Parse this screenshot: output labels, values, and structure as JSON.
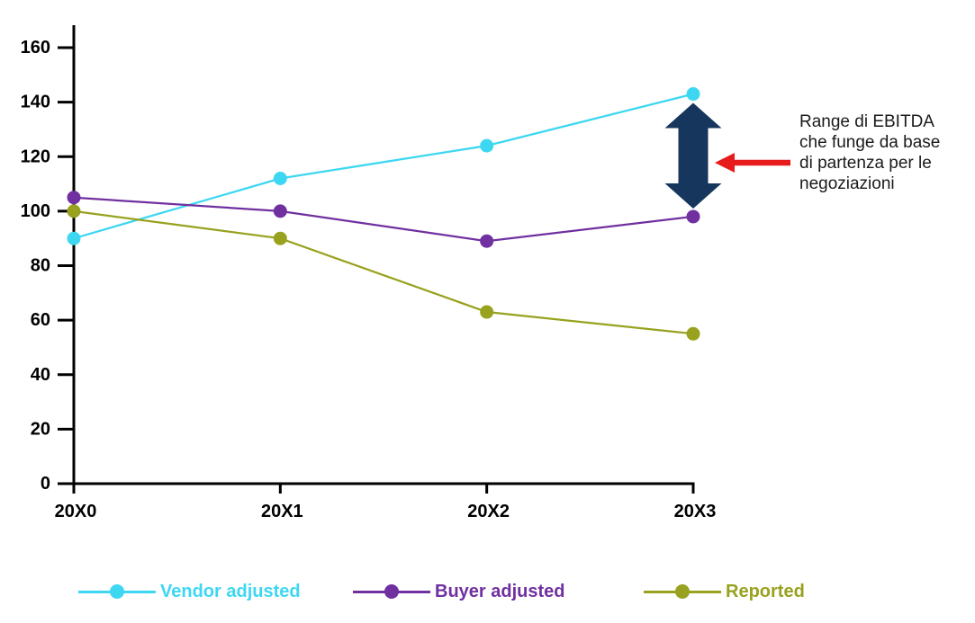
{
  "chart_data": {
    "type": "line",
    "categories": [
      "20X0",
      "20X1",
      "20X2",
      "20X3"
    ],
    "series": [
      {
        "name": "Vendor adjusted",
        "color": "#3DD7F2",
        "values": [
          90,
          112,
          124,
          143
        ]
      },
      {
        "name": "Buyer adjusted",
        "color": "#7030A0",
        "values": [
          105,
          100,
          89,
          98
        ]
      },
      {
        "name": "Reported",
        "color": "#98A21E",
        "values": [
          100,
          90,
          63,
          55
        ]
      }
    ],
    "title": "",
    "xlabel": "",
    "ylabel": "",
    "ylim": [
      0,
      160
    ],
    "yticks": [
      0,
      20,
      40,
      60,
      80,
      100,
      120,
      140,
      160
    ],
    "grid": false,
    "legend_position": "bottom",
    "axis_color": "#000000",
    "annotation": {
      "text": "Range di EBITDA che funge da base di partenza per le negoziazioni",
      "lines": [
        "Range di EBITDA",
        "che funge da base",
        "di partenza per le",
        "negoziazioni"
      ]
    },
    "range_arrow": {
      "color": "#17365D",
      "meaning": "EBITDA range at 20X3 between vendor adjusted and buyer adjusted values"
    },
    "pointer_arrow": {
      "color": "#E81B1C"
    }
  }
}
